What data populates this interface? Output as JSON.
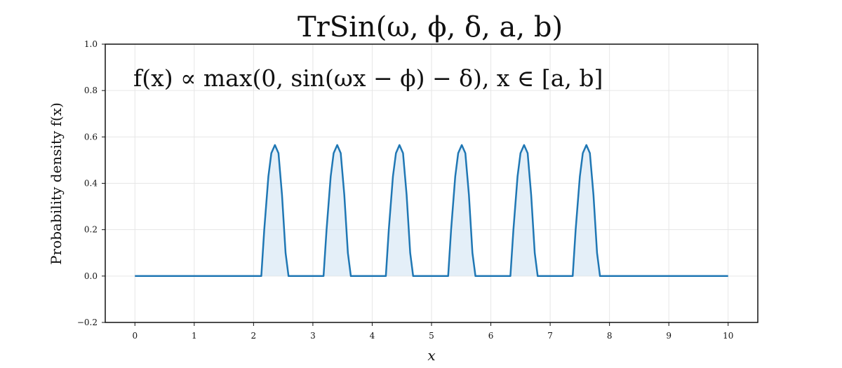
{
  "chart_data": {
    "type": "area",
    "title": "TrSin(ω, ϕ, δ, a, b)",
    "annotation": "f(x) ∝ max(0, sin(ωx − ϕ) − δ),    x ∈ [a, b]",
    "xlabel": "x",
    "ylabel": "Probability density f(x)",
    "xlim": [
      -0.5,
      10.5
    ],
    "ylim": [
      -0.2,
      1.0
    ],
    "xticks": [
      0,
      1,
      2,
      3,
      4,
      5,
      6,
      7,
      8,
      9,
      10
    ],
    "yticks": [
      -0.2,
      0.0,
      0.2,
      0.4,
      0.6,
      0.8,
      1.0
    ],
    "ytick_labels": [
      "−0.2",
      "0.0",
      "0.2",
      "0.4",
      "0.6",
      "0.8",
      "1.0"
    ],
    "grid": true,
    "series": [
      {
        "x": [
          0,
          2.13,
          2.18,
          2.25,
          2.3,
          2.36,
          2.42,
          2.48,
          2.54,
          2.59,
          3.18,
          3.23,
          3.3,
          3.35,
          3.41,
          3.47,
          3.53,
          3.59,
          3.64,
          4.23,
          4.28,
          4.35,
          4.4,
          4.46,
          4.52,
          4.58,
          4.64,
          4.69,
          5.28,
          5.33,
          5.4,
          5.45,
          5.51,
          5.57,
          5.63,
          5.69,
          5.74,
          6.33,
          6.38,
          6.45,
          6.5,
          6.56,
          6.62,
          6.68,
          6.74,
          6.79,
          7.38,
          7.43,
          7.5,
          7.55,
          7.61,
          7.67,
          7.73,
          7.79,
          7.84,
          10
        ],
        "y": [
          0.0,
          0.0,
          0.2,
          0.43,
          0.53,
          0.565,
          0.53,
          0.35,
          0.1,
          0.0,
          0.0,
          0.2,
          0.43,
          0.53,
          0.565,
          0.53,
          0.35,
          0.1,
          0.0,
          0.0,
          0.2,
          0.43,
          0.53,
          0.565,
          0.53,
          0.35,
          0.1,
          0.0,
          0.0,
          0.2,
          0.43,
          0.53,
          0.565,
          0.53,
          0.35,
          0.1,
          0.0,
          0.0,
          0.2,
          0.43,
          0.53,
          0.565,
          0.53,
          0.35,
          0.1,
          0.0,
          0.0,
          0.2,
          0.43,
          0.53,
          0.565,
          0.53,
          0.35,
          0.1,
          0.0,
          0.0
        ],
        "color": "#1f77b4",
        "fill_color": "#d6e6f4"
      }
    ]
  }
}
